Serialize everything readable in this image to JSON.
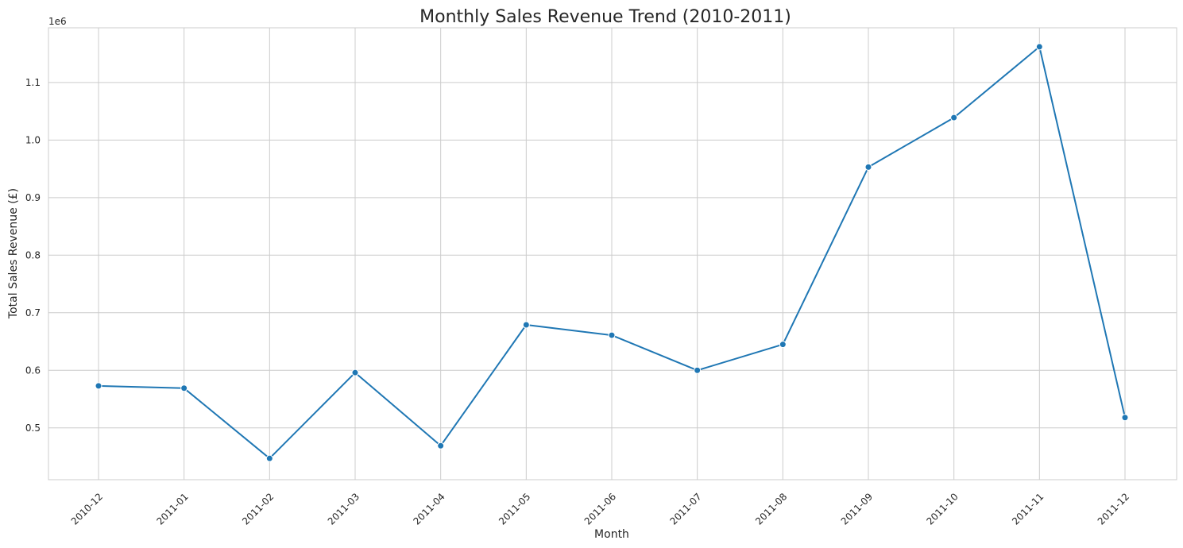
{
  "chart_data": {
    "type": "line",
    "title": "Monthly Sales Revenue Trend (2010-2011)",
    "xlabel": "Month",
    "ylabel": "Total Sales Revenue (£)",
    "y_offset_label": "1e6",
    "categories": [
      "2010-12",
      "2011-01",
      "2011-02",
      "2011-03",
      "2011-04",
      "2011-05",
      "2011-06",
      "2011-07",
      "2011-08",
      "2011-09",
      "2011-10",
      "2011-11",
      "2011-12"
    ],
    "series": [
      {
        "values": [
          573000,
          569000,
          447000,
          596000,
          469000,
          679000,
          661000,
          600000,
          645000,
          953000,
          1039000,
          1162000,
          518000
        ]
      }
    ],
    "ylim": [
      410000,
      1195000
    ],
    "yticks": [
      0.5,
      0.6,
      0.7,
      0.8,
      0.9,
      1.0,
      1.1
    ],
    "ytick_labels": [
      "0.5",
      "0.6",
      "0.7",
      "0.8",
      "0.9",
      "1.0",
      "1.1"
    ],
    "ytick_scale": 1000000,
    "grid": true,
    "legend": "none",
    "colors": {
      "line": "#1f77b4",
      "grid": "#cccccc",
      "text": "#262626"
    }
  }
}
